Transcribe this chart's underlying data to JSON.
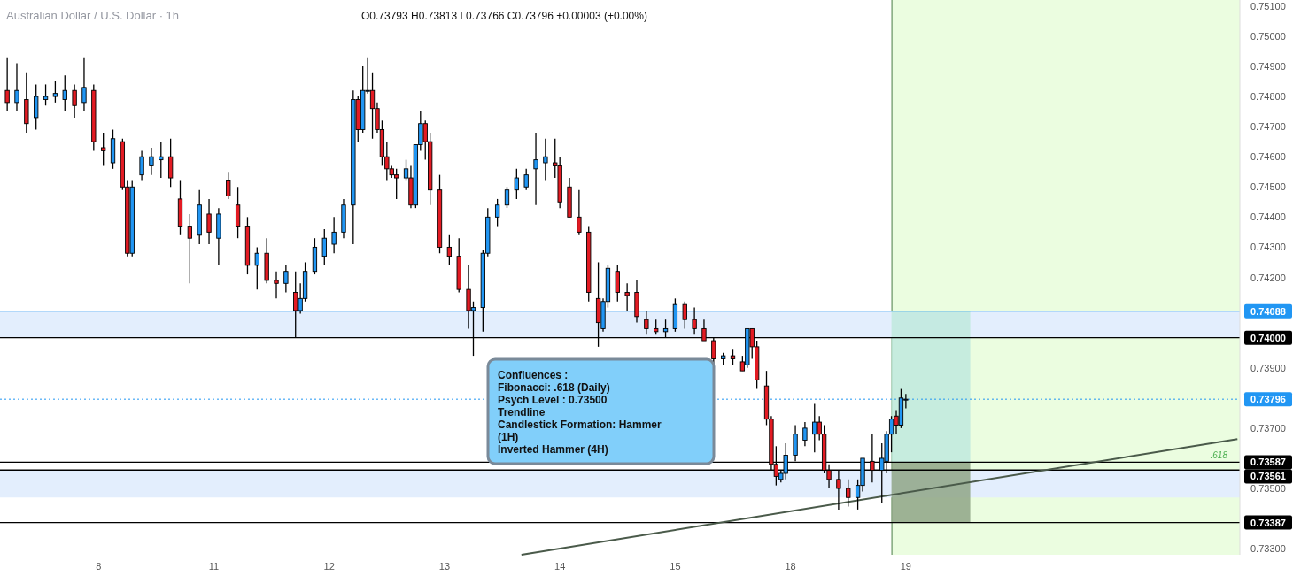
{
  "chart_data": {
    "type": "candlestick",
    "title": "Australian Dollar / U.S. Dollar · 1h",
    "subtitle": "O0.73793 H0.73813 L0.73766 C0.73796 +0.00003 (+0.00%)",
    "annotations": [
      "Confluences :\nFibonacci: .618 (Daily)\nPsych Level : 0.73500\nTrendline\nCandlestick Formation: Hammer\n(1H)\nInverted Hammer (4H)",
      {
        "text": ".618",
        "y": 0.73587
      }
    ],
    "categories": [
      null,
      null,
      null,
      null,
      null,
      null,
      null,
      null,
      null,
      null,
      null,
      null,
      null,
      null,
      null,
      null,
      null,
      null,
      null,
      null,
      "8",
      null,
      null,
      null,
      null,
      null,
      null,
      null,
      null,
      null,
      null,
      null,
      null,
      null,
      null,
      null,
      null,
      null,
      null,
      null,
      null,
      null,
      null,
      null,
      "11",
      null,
      null,
      null,
      null,
      null,
      null,
      null,
      null,
      null,
      null,
      null,
      null,
      null,
      null,
      null,
      null,
      null,
      null,
      null,
      null,
      null,
      null,
      null,
      "12",
      null,
      null,
      null,
      null,
      null,
      null,
      null,
      null,
      null,
      null,
      null,
      null,
      null,
      null,
      null,
      null,
      null,
      null,
      null,
      null,
      null,
      null,
      null,
      "13",
      null,
      null,
      null,
      null,
      null,
      null,
      null,
      null,
      null,
      null,
      null,
      null,
      null,
      null,
      null,
      null,
      null,
      null,
      null,
      null,
      null,
      null,
      null,
      "14",
      null,
      null,
      null,
      null,
      null,
      null,
      null,
      null,
      null,
      null,
      null,
      null,
      null,
      null,
      null,
      null,
      null,
      null,
      null,
      null,
      null,
      null,
      null,
      "15",
      null,
      null,
      null,
      null,
      null,
      null,
      null,
      null,
      null,
      null,
      null,
      null,
      null,
      null,
      null,
      null,
      null,
      null,
      null,
      null,
      null,
      null,
      null,
      "18",
      null,
      null,
      null,
      null,
      null,
      null,
      null,
      null,
      null,
      null,
      null,
      null,
      null,
      null,
      null,
      null,
      null,
      null,
      null,
      null,
      null,
      null,
      null,
      "19",
      null,
      null,
      null,
      null,
      null,
      null,
      null,
      null,
      null,
      null,
      null,
      null,
      null,
      null,
      null,
      null,
      null,
      null,
      null,
      null,
      null,
      null,
      null,
      null,
      null,
      null,
      null,
      null,
      null,
      null,
      null,
      null,
      null,
      null,
      null,
      null,
      null,
      null,
      null,
      null,
      null,
      null,
      null,
      null,
      null,
      null,
      null,
      null,
      null,
      null,
      null,
      null,
      null,
      null,
      null,
      null,
      null,
      null,
      null,
      null,
      null,
      null,
      null,
      null,
      null,
      null,
      null,
      null,
      null
    ],
    "ylim": [
      0.7328,
      0.7512
    ],
    "yticks": [
      {
        "value": 0.751,
        "label": "0.75100"
      },
      {
        "value": 0.75,
        "label": "0.75000"
      },
      {
        "value": 0.749,
        "label": "0.74900"
      },
      {
        "value": 0.748,
        "label": "0.74800"
      },
      {
        "value": 0.747,
        "label": "0.74700"
      },
      {
        "value": 0.746,
        "label": "0.74600"
      },
      {
        "value": 0.745,
        "label": "0.74500"
      },
      {
        "value": 0.744,
        "label": "0.74400"
      },
      {
        "value": 0.743,
        "label": "0.74300"
      },
      {
        "value": 0.742,
        "label": "0.74200"
      },
      {
        "value": 0.739,
        "label": "0.73900"
      },
      {
        "value": 0.737,
        "label": "0.73700"
      },
      {
        "value": 0.735,
        "label": "0.73500"
      },
      {
        "value": 0.733,
        "label": "0.73300"
      }
    ],
    "bands": [
      {
        "axis": "y",
        "from": 0.74,
        "to": 0.74088,
        "color": "#e3eefd"
      },
      {
        "axis": "y",
        "from": 0.7347,
        "to": 0.73561,
        "color": "#e3eefd"
      },
      {
        "axis": "y",
        "from": 0.73587,
        "to": 0.74088,
        "color": "#bfe9dd"
      },
      {
        "axis": "y",
        "from": 0.73387,
        "to": 0.73587,
        "color": "#8fa586"
      }
    ],
    "ref_lines": [
      {
        "axis": "y",
        "value": 0.74088,
        "label": "0.74088",
        "color": "#2196f3"
      },
      {
        "axis": "y",
        "value": 0.74,
        "label": "0.74000",
        "color": "#000000"
      },
      {
        "axis": "y",
        "value": 0.73796,
        "label": "0.73796",
        "color": "#2196f3",
        "line_style": "dotted"
      },
      {
        "axis": "y",
        "value": 0.73587,
        "label": "0.73587",
        "color": "#000000"
      },
      {
        "axis": "y",
        "value": 0.73561,
        "label": "0.73561",
        "color": "#000000"
      },
      {
        "axis": "y",
        "value": 0.73387,
        "label": "0.73387",
        "color": "#000000"
      }
    ],
    "series": [
      {
        "ohlc": [
          null,
          [
            0.7482,
            0.7493,
            0.7475,
            0.7478
          ],
          null,
          [
            0.7478,
            0.7491,
            0.7475,
            0.7482
          ],
          null,
          [
            0.7479,
            0.7488,
            0.7468,
            0.7471
          ],
          null,
          [
            0.7473,
            0.7484,
            0.7469,
            0.748
          ],
          null,
          [
            0.7479,
            0.7484,
            0.7477,
            0.748
          ],
          null,
          [
            0.748,
            0.7485,
            0.7478,
            0.7481
          ],
          null,
          [
            0.7479,
            0.7487,
            0.7475,
            0.7482
          ],
          null,
          [
            0.7482,
            0.7484,
            0.7473,
            0.7477
          ],
          null,
          [
            0.7478,
            0.7493,
            0.7475,
            0.7483
          ],
          null,
          [
            0.7482,
            0.7484,
            0.7462,
            0.7465
          ],
          null,
          [
            0.7463,
            0.7468,
            0.7457,
            0.7462
          ],
          null,
          [
            0.7458,
            0.7469,
            0.7456,
            0.7466
          ],
          null,
          [
            0.7465,
            0.7466,
            0.7449,
            0.745
          ],
          [
            0.745,
            0.7452,
            0.7427,
            0.7428
          ],
          [
            0.7428,
            0.7452,
            0.7427,
            0.745
          ],
          null,
          [
            0.7454,
            0.7462,
            0.7452,
            0.746
          ],
          null,
          [
            0.7457,
            0.7463,
            0.7454,
            0.746
          ],
          null,
          [
            0.7459,
            0.7465,
            0.7453,
            0.746
          ],
          null,
          [
            0.746,
            0.7466,
            0.745,
            0.7453
          ],
          null,
          [
            0.7446,
            0.7452,
            0.7434,
            0.7437
          ],
          null,
          [
            0.7437,
            0.7441,
            0.7418,
            0.7433
          ],
          null,
          [
            0.7434,
            0.7449,
            0.7431,
            0.7444
          ],
          null,
          [
            0.7441,
            0.7446,
            0.7431,
            0.7435
          ],
          null,
          [
            0.7433,
            0.7443,
            0.7424,
            0.7441
          ],
          null,
          [
            0.7452,
            0.7455,
            0.7446,
            0.7447
          ],
          null,
          [
            0.7444,
            0.745,
            0.7433,
            0.7437
          ],
          null,
          [
            0.7437,
            0.744,
            0.7421,
            0.7424
          ],
          null,
          [
            0.7424,
            0.743,
            0.7416,
            0.7428
          ],
          null,
          [
            0.7428,
            0.7433,
            0.7418,
            0.7419
          ],
          null,
          [
            0.7419,
            0.7422,
            0.7413,
            0.7418
          ],
          null,
          [
            0.7418,
            0.7424,
            0.7415,
            0.7422
          ],
          null,
          [
            0.7415,
            0.7422,
            0.74,
            0.7409
          ],
          [
            0.7409,
            0.7418,
            0.7408,
            0.7413
          ],
          [
            0.7413,
            0.7425,
            0.7412,
            0.7422
          ],
          null,
          [
            0.7422,
            0.7433,
            0.7421,
            0.743
          ],
          null,
          [
            0.7427,
            0.7436,
            0.7424,
            0.7433
          ],
          null,
          [
            0.7431,
            0.744,
            0.7428,
            0.7435
          ],
          null,
          [
            0.7435,
            0.7446,
            0.7433,
            0.7444
          ],
          null,
          [
            0.7444,
            0.7482,
            0.7431,
            0.7479
          ],
          [
            0.7479,
            0.748,
            0.7465,
            0.7469
          ],
          [
            0.7469,
            0.749,
            0.7468,
            0.7482
          ],
          [
            0.7482,
            0.7493,
            0.7481,
            0.7482
          ],
          [
            0.7482,
            0.7488,
            0.7466,
            0.7476
          ],
          [
            0.7476,
            0.7478,
            0.7468,
            0.7469
          ],
          [
            0.7469,
            0.7472,
            0.7457,
            0.746
          ],
          [
            0.746,
            0.7465,
            0.7452,
            0.7456
          ],
          [
            0.7456,
            0.7457,
            0.7453,
            0.7454
          ],
          [
            0.7454,
            0.7456,
            0.7446,
            0.7453
          ],
          null,
          [
            0.7453,
            0.7459,
            0.7452,
            0.7456
          ],
          [
            0.7453,
            0.7457,
            0.7443,
            0.7444
          ],
          [
            0.7444,
            0.7464,
            0.7443,
            0.7464
          ],
          [
            0.7464,
            0.7475,
            0.7462,
            0.7471
          ],
          [
            0.7471,
            0.7472,
            0.7459,
            0.7465
          ],
          [
            0.7465,
            0.7468,
            0.7444,
            0.7449
          ],
          null,
          [
            0.7449,
            0.7454,
            0.7428,
            0.743
          ],
          null,
          [
            0.743,
            0.7434,
            0.7424,
            0.7427
          ],
          null,
          [
            0.7427,
            0.7433,
            0.7415,
            0.7416
          ],
          null,
          [
            0.7416,
            0.7424,
            0.7403,
            0.7409
          ],
          [
            0.7409,
            0.7412,
            0.7394,
            0.741
          ],
          null,
          [
            0.741,
            0.7429,
            0.7402,
            0.7428
          ],
          [
            0.7428,
            0.7443,
            0.7427,
            0.744
          ],
          null,
          [
            0.744,
            0.7446,
            0.7437,
            0.7444
          ],
          null,
          [
            0.7444,
            0.745,
            0.7443,
            0.7449
          ],
          null,
          [
            0.7449,
            0.7456,
            0.7446,
            0.7453
          ],
          null,
          [
            0.745,
            0.7456,
            0.7449,
            0.7454
          ],
          null,
          [
            0.7456,
            0.7468,
            0.7444,
            0.7459
          ],
          null,
          [
            0.7458,
            0.7466,
            0.7452,
            0.746
          ],
          null,
          [
            0.7458,
            0.7466,
            0.7453,
            0.7457
          ],
          [
            0.7457,
            0.746,
            0.7443,
            0.7445
          ],
          null,
          [
            0.745,
            0.7453,
            0.744,
            0.744
          ],
          null,
          [
            0.744,
            0.7449,
            0.7434,
            0.7435
          ],
          null,
          [
            0.7435,
            0.7437,
            0.7412,
            0.7415
          ],
          null,
          [
            0.7413,
            0.7425,
            0.7397,
            0.7405
          ],
          [
            0.7403,
            0.7413,
            0.7402,
            0.7412
          ],
          [
            0.7412,
            0.7424,
            0.741,
            0.7423
          ],
          null,
          [
            0.7422,
            0.7424,
            0.7412,
            0.7415
          ],
          null,
          [
            0.7415,
            0.7418,
            0.7409,
            0.7414
          ],
          null,
          [
            0.7415,
            0.7419,
            0.7405,
            0.7407
          ],
          null,
          [
            0.7406,
            0.7409,
            0.7401,
            0.7403
          ],
          null,
          [
            0.7403,
            0.7406,
            0.7401,
            0.7402
          ],
          null,
          [
            0.7402,
            0.7406,
            0.74,
            0.7403
          ],
          null,
          [
            0.7403,
            0.7413,
            0.7402,
            0.7411
          ],
          null,
          [
            0.7411,
            0.7412,
            0.7403,
            0.7406
          ],
          null,
          [
            0.7406,
            0.741,
            0.7401,
            0.7403
          ],
          null,
          [
            0.7403,
            0.7406,
            0.7399,
            0.7399
          ],
          null,
          [
            0.7399,
            0.74,
            0.7391,
            0.7393
          ],
          null,
          [
            0.7393,
            0.7395,
            0.7391,
            0.7394
          ],
          null,
          [
            0.7394,
            0.7396,
            0.7391,
            0.7393
          ],
          null,
          [
            0.7392,
            0.7394,
            0.7389,
            0.7389
          ],
          [
            0.7391,
            0.7403,
            0.739,
            0.7403
          ],
          [
            0.7403,
            0.7403,
            0.7393,
            0.7397
          ],
          [
            0.7397,
            0.7399,
            0.7383,
            0.7386
          ],
          null,
          [
            0.7384,
            0.7389,
            0.7371,
            0.7373
          ],
          [
            0.7373,
            0.7374,
            0.7356,
            0.7358
          ],
          [
            0.7358,
            0.7364,
            0.7351,
            0.7354
          ],
          [
            0.7353,
            0.7356,
            0.7352,
            0.7355
          ],
          [
            0.7355,
            0.7365,
            0.7353,
            0.7361
          ],
          null,
          [
            0.7361,
            0.7371,
            0.7359,
            0.7368
          ],
          null,
          [
            0.7366,
            0.7372,
            0.7364,
            0.737
          ],
          null,
          [
            0.7368,
            0.7378,
            0.7362,
            0.7372
          ],
          [
            0.7372,
            0.7374,
            0.7366,
            0.7368
          ],
          [
            0.7368,
            0.7371,
            0.7355,
            0.7356
          ],
          [
            0.7356,
            0.7358,
            0.735,
            0.7353
          ],
          null,
          [
            0.7353,
            0.7356,
            0.7343,
            0.735
          ],
          null,
          [
            0.735,
            0.7353,
            0.7344,
            0.7347
          ],
          null,
          [
            0.7347,
            0.7353,
            0.7343,
            0.7351
          ],
          [
            0.7351,
            0.736,
            0.7349,
            0.736
          ],
          null,
          [
            0.7359,
            0.7368,
            0.7352,
            0.7356
          ],
          null,
          [
            0.7356,
            0.7365,
            0.7345,
            0.736
          ],
          [
            0.7359,
            0.7369,
            0.7355,
            0.7368
          ],
          [
            0.7368,
            0.7374,
            0.7362,
            0.7373
          ],
          [
            0.7374,
            0.7376,
            0.7368,
            0.7371
          ],
          [
            0.7371,
            0.7383,
            0.737,
            0.738
          ],
          [
            0.73793,
            0.73813,
            0.73766,
            0.73796
          ],
          null,
          null,
          null,
          null,
          null,
          null,
          null,
          null,
          null,
          null,
          null,
          null,
          null,
          null,
          null,
          null,
          null,
          null,
          null,
          null,
          null,
          null,
          null,
          null,
          null,
          null,
          null,
          null,
          null,
          null,
          null,
          null,
          null,
          null,
          null,
          null,
          null,
          null,
          null,
          null,
          null,
          null,
          null,
          null,
          null,
          null,
          null,
          null,
          null,
          null,
          null,
          null,
          null,
          null,
          null,
          null,
          null,
          null,
          null,
          null,
          null,
          null,
          null,
          null,
          null,
          null,
          null,
          null,
          null
        ]
      },
      {
        "type": "line",
        "color": "#4a5a4a",
        "values": [
          null,
          null,
          null,
          null,
          null,
          null,
          null,
          null,
          null,
          null,
          null,
          null,
          null,
          null,
          null,
          null,
          null,
          null,
          null,
          null,
          null,
          null,
          null,
          null,
          null,
          null,
          null,
          null,
          null,
          null,
          null,
          null,
          null,
          null,
          null,
          null,
          null,
          null,
          null,
          null,
          null,
          null,
          null,
          null,
          null,
          null,
          null,
          null,
          null,
          null,
          null,
          null,
          null,
          null,
          null,
          null,
          null,
          null,
          null,
          null,
          null,
          null,
          null,
          null,
          null,
          null,
          null,
          null,
          null,
          null,
          null,
          null,
          null,
          null,
          null,
          null,
          null,
          null,
          null,
          null,
          null,
          null,
          null,
          null,
          null,
          null,
          null,
          null,
          null,
          null,
          null,
          null,
          null,
          null,
          null,
          null,
          null,
          null,
          null,
          null,
          null,
          null,
          null,
          null,
          null,
          null,
          null,
          null,
          0.7328,
          null,
          null,
          null,
          null,
          null,
          null,
          null,
          null,
          null,
          null,
          null,
          null,
          null,
          null,
          null,
          null,
          null,
          null,
          null,
          null,
          null,
          null,
          null,
          null,
          null,
          null,
          null,
          null,
          null,
          null,
          null,
          null,
          null,
          null,
          null,
          null,
          null,
          null,
          null,
          null,
          null,
          null,
          null,
          null,
          null,
          null,
          null,
          null,
          null,
          null,
          null,
          null,
          null,
          null,
          null,
          null,
          null,
          null,
          null,
          null,
          null,
          null,
          null,
          null,
          null,
          null,
          null,
          null,
          null,
          null,
          null,
          null,
          null,
          null,
          null,
          null,
          null,
          null,
          null,
          null,
          null,
          null,
          null,
          null,
          null,
          null,
          null,
          null,
          null,
          null,
          null,
          null,
          null,
          null,
          null,
          null,
          null,
          null,
          null,
          null,
          null,
          null,
          null,
          null,
          null,
          null,
          null,
          null,
          null,
          null,
          null,
          null,
          null,
          null,
          null,
          null,
          null,
          null,
          null,
          null,
          null,
          null,
          null,
          null,
          null,
          null,
          null,
          null,
          null,
          null,
          null,
          null,
          null,
          null,
          null,
          null,
          null,
          null,
          null,
          null,
          null,
          null,
          null,
          null,
          null,
          null,
          null,
          null,
          0.73664
        ]
      }
    ]
  }
}
